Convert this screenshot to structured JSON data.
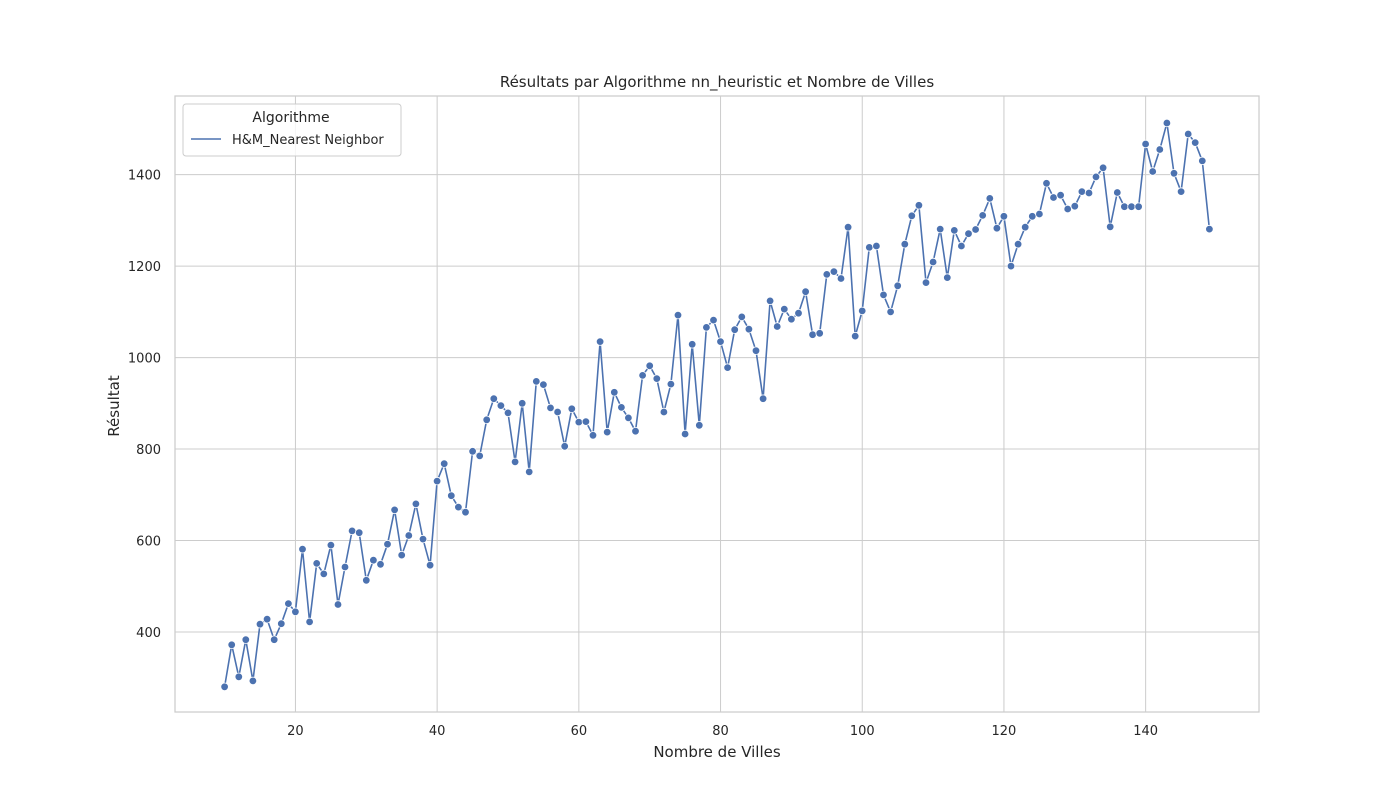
{
  "chart_data": {
    "type": "line",
    "title": "Résultats par Algorithme nn_heuristic et Nombre de Villes",
    "xlabel": "Nombre de Villes",
    "ylabel": "Résultat",
    "xlim": [
      3,
      156
    ],
    "ylim": [
      225,
      1572
    ],
    "xticks": [
      20,
      40,
      60,
      80,
      100,
      120,
      140
    ],
    "yticks": [
      400,
      600,
      800,
      1000,
      1200,
      1400
    ],
    "grid": true,
    "legend": {
      "title": "Algorithme",
      "position": "top-left"
    },
    "series": [
      {
        "name": "H&M_Nearest Neighbor",
        "color": "#4c72b0",
        "marker": "circle",
        "x": [
          10,
          11,
          12,
          13,
          14,
          15,
          16,
          17,
          18,
          19,
          20,
          21,
          22,
          23,
          24,
          25,
          26,
          27,
          28,
          29,
          30,
          31,
          32,
          33,
          34,
          35,
          36,
          37,
          38,
          39,
          40,
          41,
          42,
          43,
          44,
          45,
          46,
          47,
          48,
          49,
          50,
          51,
          52,
          53,
          54,
          55,
          56,
          57,
          58,
          59,
          60,
          61,
          62,
          63,
          64,
          65,
          66,
          67,
          68,
          69,
          70,
          71,
          72,
          73,
          74,
          75,
          76,
          77,
          78,
          79,
          80,
          81,
          82,
          83,
          84,
          85,
          86,
          87,
          88,
          89,
          90,
          91,
          92,
          93,
          94,
          95,
          96,
          97,
          98,
          99,
          100,
          101,
          102,
          103,
          104,
          105,
          106,
          107,
          108,
          109,
          110,
          111,
          112,
          113,
          114,
          115,
          116,
          117,
          118,
          119,
          120,
          121,
          122,
          123,
          124,
          125,
          126,
          127,
          128,
          129,
          130,
          131,
          132,
          133,
          134,
          135,
          136,
          137,
          138,
          139,
          140,
          141,
          142,
          143,
          144,
          145,
          146,
          147,
          148,
          149
        ],
        "y": [
          280,
          372,
          302,
          383,
          293,
          417,
          428,
          383,
          418,
          462,
          444,
          581,
          422,
          550,
          527,
          590,
          460,
          542,
          621,
          617,
          513,
          557,
          548,
          592,
          667,
          568,
          611,
          680,
          603,
          546,
          730,
          768,
          698,
          673,
          662,
          795,
          785,
          864,
          910,
          895,
          879,
          772,
          900,
          750,
          948,
          941,
          890,
          881,
          806,
          888,
          859,
          860,
          830,
          1035,
          837,
          924,
          891,
          868,
          839,
          961,
          982,
          954,
          881,
          942,
          1093,
          833,
          1029,
          852,
          1066,
          1082,
          1035,
          978,
          1061,
          1089,
          1062,
          1015,
          910,
          1124,
          1068,
          1106,
          1084,
          1097,
          1144,
          1050,
          1053,
          1182,
          1188,
          1173,
          1285,
          1047,
          1102,
          1241,
          1244,
          1137,
          1100,
          1157,
          1248,
          1310,
          1333,
          1164,
          1209,
          1281,
          1175,
          1278,
          1244,
          1271,
          1280,
          1311,
          1348,
          1283,
          1309,
          1200,
          1248,
          1285,
          1309,
          1314,
          1381,
          1350,
          1355,
          1325,
          1331,
          1363,
          1360,
          1395,
          1415,
          1286,
          1361,
          1330,
          1330,
          1330,
          1467,
          1407,
          1455,
          1513,
          1403,
          1363,
          1489,
          1470,
          1430,
          1281
        ]
      }
    ]
  }
}
